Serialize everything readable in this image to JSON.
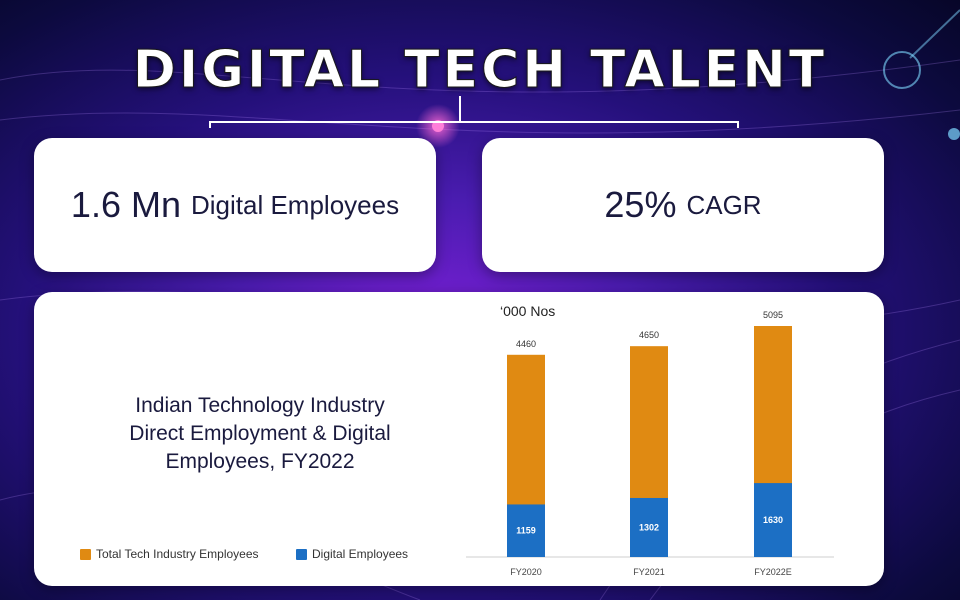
{
  "header": {
    "title": "DIGITAL TECH TALENT"
  },
  "stats": [
    {
      "value": "1.6 Mn",
      "label": "Digital Employees"
    },
    {
      "value": "25%",
      "label": "CAGR"
    }
  ],
  "chart_panel": {
    "title_lines": [
      "Indian Technology Industry",
      "Direct Employment & Digital",
      "Employees, FY2022"
    ]
  },
  "colors": {
    "total": "#e08a12",
    "digital": "#1c6fc4",
    "title_text": "#ffffff",
    "card_bg": "#ffffff"
  },
  "chart_data": {
    "type": "bar",
    "stacked": false,
    "unit_label": "‘000 Nos",
    "categories": [
      "FY2020",
      "FY2021",
      "FY2022E"
    ],
    "series": [
      {
        "name": "Total Tech Industry Employees",
        "values": [
          4460,
          4650,
          5095
        ],
        "color": "#e08a12"
      },
      {
        "name": "Digital Employees",
        "values": [
          1159,
          1302,
          1630
        ],
        "color": "#1c6fc4"
      }
    ],
    "ylim": [
      0,
      5095
    ],
    "grid": false,
    "legend_position": "bottom-left"
  }
}
